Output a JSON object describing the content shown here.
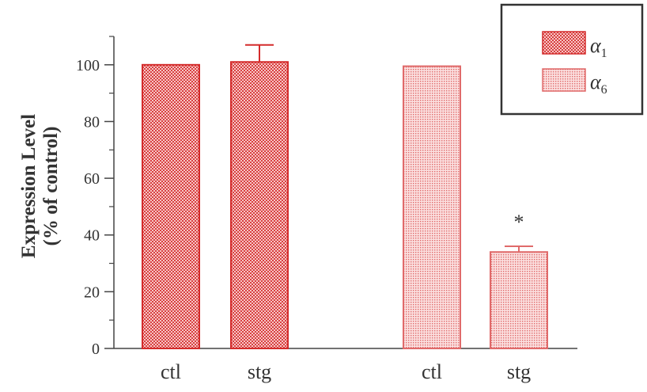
{
  "chart_data": {
    "type": "bar",
    "ylabel_lines": [
      "Expression Level",
      "(% of control)"
    ],
    "ylim": [
      0,
      110
    ],
    "yticks": [
      0,
      20,
      40,
      60,
      80,
      100
    ],
    "groups": [
      {
        "series": "α1",
        "bars": [
          {
            "category": "ctl",
            "value": 100,
            "error": 0
          },
          {
            "category": "stg",
            "value": 101,
            "error": 6
          }
        ]
      },
      {
        "series": "α6",
        "bars": [
          {
            "category": "ctl",
            "value": 99.5,
            "error": 0
          },
          {
            "category": "stg",
            "value": 34,
            "error": 2,
            "annotation": "*"
          }
        ]
      }
    ],
    "legend": {
      "placement": "top-right",
      "entries": [
        {
          "symbol": "α",
          "subscript": "1",
          "pattern": "checker"
        },
        {
          "symbol": "α",
          "subscript": "6",
          "pattern": "fine-dots"
        }
      ]
    },
    "colors": {
      "bar_fill": "#f2a2a2",
      "bar_stroke": "#d42b2b",
      "pattern_dark": "#d84040",
      "axis": "#444444"
    },
    "grid": false
  }
}
